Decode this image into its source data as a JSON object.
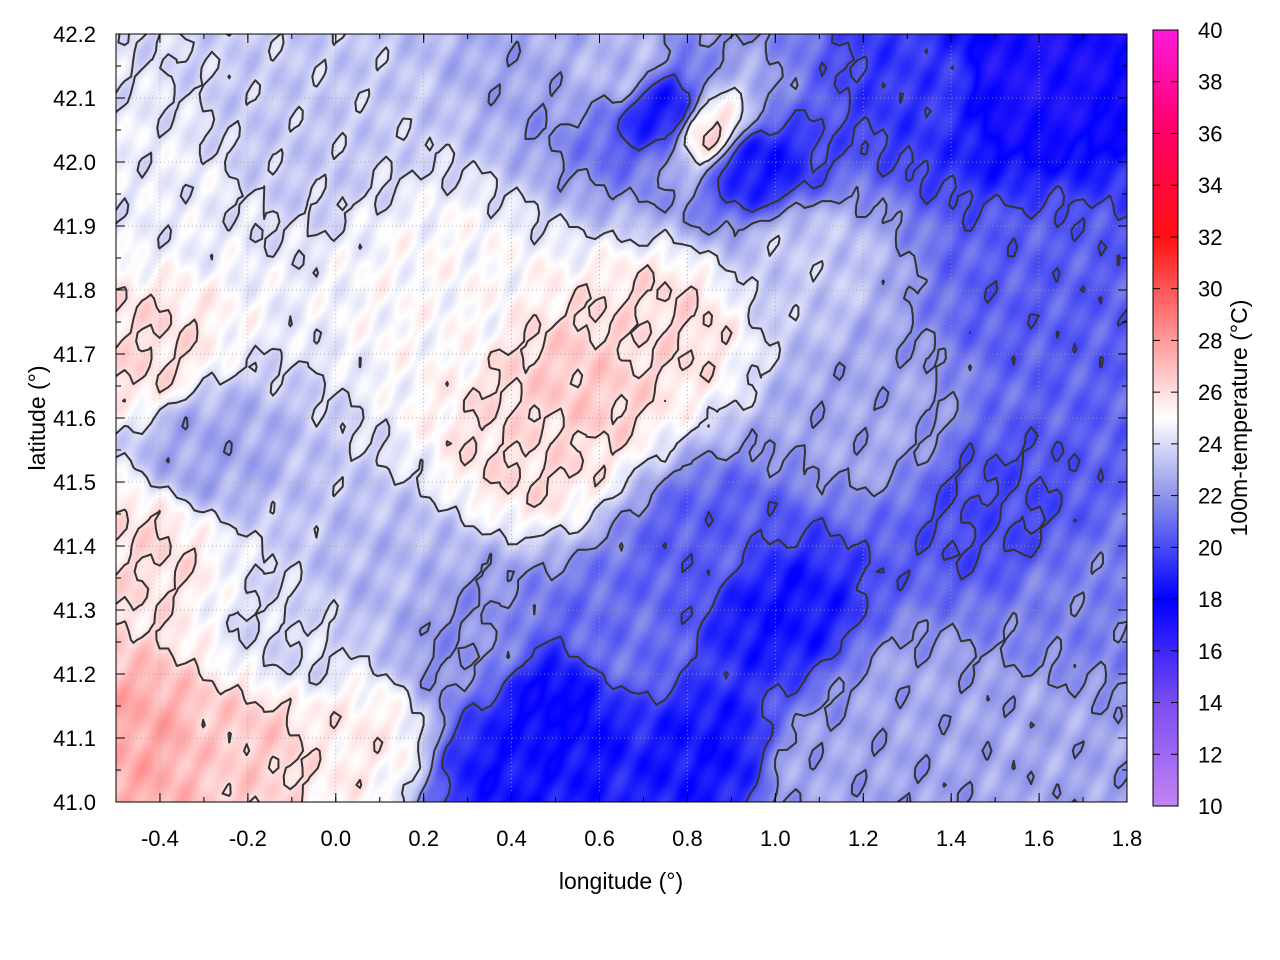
{
  "chart_data": {
    "type": "heatmap",
    "title": "",
    "xlabel": "longitude (°)",
    "ylabel": "latitude (°)",
    "colorbar_label": "100m-temperature (°C)",
    "xlim": [
      -0.5,
      1.8
    ],
    "ylim": [
      41.0,
      42.2
    ],
    "x_ticks": [
      "-0.4",
      "-0.2",
      "0.0",
      "0.2",
      "0.4",
      "0.6",
      "0.8",
      "1.0",
      "1.2",
      "1.4",
      "1.6",
      "1.8"
    ],
    "y_ticks": [
      "41.0",
      "41.1",
      "41.2",
      "41.3",
      "41.4",
      "41.5",
      "41.6",
      "41.7",
      "41.8",
      "41.9",
      "42.0",
      "42.1",
      "42.2"
    ],
    "colorbar_range": [
      10,
      40
    ],
    "colorbar_ticks": [
      "10",
      "12",
      "14",
      "16",
      "18",
      "20",
      "22",
      "24",
      "26",
      "28",
      "30",
      "32",
      "34",
      "36",
      "38",
      "40"
    ],
    "colormap_stops": [
      {
        "value": 10,
        "color": "#c383f5"
      },
      {
        "value": 14,
        "color": "#7a4df0"
      },
      {
        "value": 18,
        "color": "#0000ff"
      },
      {
        "value": 22,
        "color": "#8f95ea"
      },
      {
        "value": 25,
        "color": "#ffffff"
      },
      {
        "value": 28,
        "color": "#ff9a9a"
      },
      {
        "value": 32,
        "color": "#ff1010"
      },
      {
        "value": 36,
        "color": "#ff0066"
      },
      {
        "value": 40,
        "color": "#ff1ad9"
      }
    ],
    "grid": true,
    "contour_color": "#333333",
    "field_samples": [
      {
        "lon": -0.45,
        "lat": 41.1,
        "temp": 27.5
      },
      {
        "lon": -0.2,
        "lat": 41.1,
        "temp": 26.5
      },
      {
        "lon": 0.05,
        "lat": 41.1,
        "temp": 25.5
      },
      {
        "lon": -0.45,
        "lat": 41.4,
        "temp": 26.0
      },
      {
        "lon": -0.45,
        "lat": 41.7,
        "temp": 26.0
      },
      {
        "lon": -0.3,
        "lat": 41.55,
        "temp": 22.5
      },
      {
        "lon": -0.4,
        "lat": 41.95,
        "temp": 24.5
      },
      {
        "lon": -0.1,
        "lat": 42.05,
        "temp": 23.5
      },
      {
        "lon": 0.25,
        "lat": 41.8,
        "temp": 25.0
      },
      {
        "lon": 0.55,
        "lat": 41.65,
        "temp": 26.5
      },
      {
        "lon": 0.75,
        "lat": 41.75,
        "temp": 26.0
      },
      {
        "lon": 0.45,
        "lat": 41.55,
        "temp": 26.0
      },
      {
        "lon": 0.85,
        "lat": 42.05,
        "temp": 26.0
      },
      {
        "lon": 0.65,
        "lat": 42.15,
        "temp": 23.0
      },
      {
        "lon": 0.75,
        "lat": 42.08,
        "temp": 18.5
      },
      {
        "lon": 0.95,
        "lat": 42.0,
        "temp": 18.5
      },
      {
        "lon": 1.55,
        "lat": 42.13,
        "temp": 17.0
      },
      {
        "lon": 1.35,
        "lat": 42.12,
        "temp": 19.5
      },
      {
        "lon": 1.6,
        "lat": 41.8,
        "temp": 20.5
      },
      {
        "lon": 1.5,
        "lat": 41.45,
        "temp": 20.0
      },
      {
        "lon": 1.2,
        "lat": 41.6,
        "temp": 22.5
      },
      {
        "lon": 1.05,
        "lat": 41.85,
        "temp": 23.5
      },
      {
        "lon": 0.1,
        "lat": 41.35,
        "temp": 23.0
      },
      {
        "lon": -0.1,
        "lat": 41.25,
        "temp": 24.0
      },
      {
        "lon": 0.3,
        "lat": 41.25,
        "temp": 22.0
      },
      {
        "lon": 0.5,
        "lat": 41.15,
        "temp": 18.0
      },
      {
        "lon": 0.4,
        "lat": 41.05,
        "temp": 18.5
      },
      {
        "lon": 0.85,
        "lat": 41.08,
        "temp": 18.5
      },
      {
        "lon": 1.0,
        "lat": 41.3,
        "temp": 18.5
      },
      {
        "lon": 0.85,
        "lat": 41.4,
        "temp": 20.5
      },
      {
        "lon": 1.3,
        "lat": 41.15,
        "temp": 22.5
      },
      {
        "lon": 1.6,
        "lat": 41.1,
        "temp": 22.5
      },
      {
        "lon": 1.7,
        "lat": 41.3,
        "temp": 21.5
      },
      {
        "lon": 0.65,
        "lat": 41.25,
        "temp": 21.0
      },
      {
        "lon": 1.1,
        "lat": 41.05,
        "temp": 22.5
      }
    ]
  }
}
